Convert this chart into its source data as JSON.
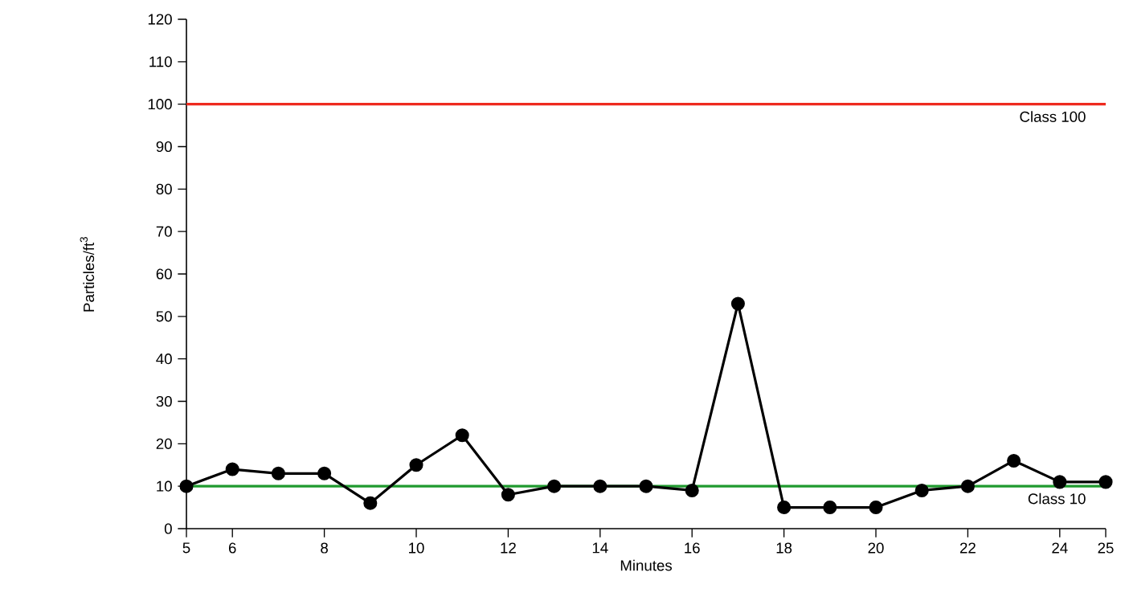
{
  "chart_data": {
    "type": "line",
    "xlabel": "Minutes",
    "ylabel": "Particles/ft$^{3}$",
    "x": [
      5,
      6,
      7,
      8,
      9,
      10,
      11,
      12,
      13,
      14,
      15,
      16,
      17,
      18,
      19,
      20,
      21,
      22,
      23,
      24,
      25
    ],
    "series": [
      {
        "color": "#000000",
        "values": [
          10,
          14,
          13,
          13,
          6,
          15,
          22,
          8,
          10,
          10,
          10,
          9,
          53,
          5,
          5,
          5,
          9,
          10,
          16,
          11,
          11
        ]
      }
    ],
    "xlim": [
      5,
      25
    ],
    "xticks": [
      5,
      6,
      8,
      10,
      12,
      14,
      16,
      18,
      20,
      22,
      24,
      25
    ],
    "ylim": [
      0,
      120
    ],
    "yticks": [
      0,
      10,
      20,
      30,
      40,
      50,
      60,
      70,
      80,
      90,
      100,
      110,
      120
    ],
    "ref_lines": [
      {
        "axis": "y",
        "value": 100,
        "label": "Class 100",
        "color": "#ee2a1e"
      },
      {
        "axis": "y",
        "value": 10,
        "label": "Class 10",
        "color": "#1f9a2e"
      }
    ],
    "marker": "circle",
    "line_style": "solid",
    "grid": false
  }
}
